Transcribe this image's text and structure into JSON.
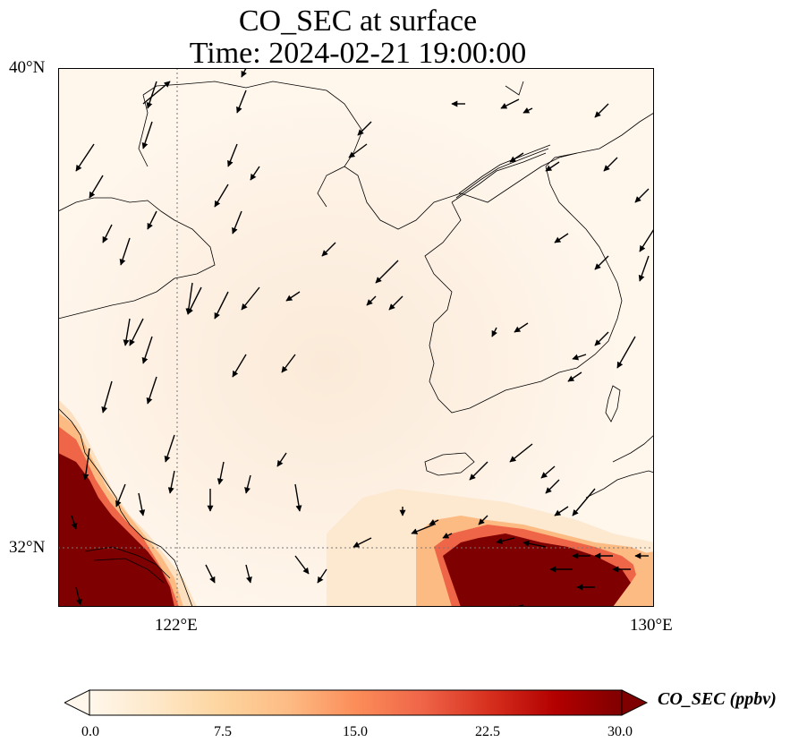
{
  "title": {
    "line1": "CO_SEC at surface",
    "line2": "Time: 2024-02-21 19:00:00"
  },
  "axes": {
    "lat_labels": [
      "40°N",
      "32°N"
    ],
    "lon_labels": [
      "122°E",
      "130°E"
    ]
  },
  "colorbar": {
    "label": "CO_SEC (ppbv)",
    "ticks": [
      "0.0",
      "7.5",
      "15.0",
      "22.5",
      "30.0"
    ],
    "min": 0,
    "max": 30,
    "colormap": [
      "#fff7ec",
      "#fee8c8",
      "#fdd49e",
      "#fdbb84",
      "#fc8d59",
      "#ef6548",
      "#d7301f",
      "#b30000",
      "#7f0000"
    ],
    "extend": "both"
  },
  "colors": {
    "background_low": "#fff5ea",
    "high": "#7f0000",
    "coastline": "#000000",
    "gridline": "#777777"
  },
  "map": {
    "lon_range": [
      120,
      130
    ],
    "lat_range": [
      31,
      40
    ],
    "wind_arrows": "northwesterly to northerly flow",
    "high_plumes": [
      "southwest corner (Shanghai/Yangtze region)",
      "southeast near Kyushu"
    ]
  }
}
